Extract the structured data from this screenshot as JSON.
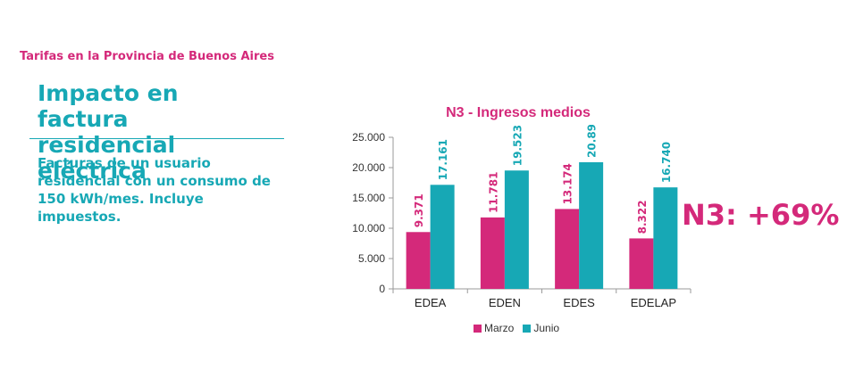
{
  "header": {
    "title": "Tarifas en la Provincia de Buenos Aires"
  },
  "headline": {
    "text": "Impacto en factura residencial eléctrica"
  },
  "subtext": {
    "text": "Facturas de un usuario residencial con un consumo de 150 kWh/mes. Incluye impuestos."
  },
  "callout": {
    "text": "N3: +69%"
  },
  "colors": {
    "accent": "#d4297a",
    "teal": "#17a8b5",
    "axis": "#9a9a9a"
  },
  "chart_data": {
    "type": "bar",
    "title": "N3 - Ingresos medios",
    "categories": [
      "EDEA",
      "EDEN",
      "EDES",
      "EDELAP"
    ],
    "series": [
      {
        "name": "Marzo",
        "color": "#d4297a",
        "values": [
          9371,
          11781,
          13174,
          8322
        ],
        "labels": [
          "9.371",
          "11.781",
          "13.174",
          "8.322"
        ]
      },
      {
        "name": "Junio",
        "color": "#17a8b5",
        "values": [
          17161,
          19523,
          20891,
          16740
        ],
        "labels": [
          "17.161",
          "19.523",
          "20.891",
          "16.740"
        ]
      }
    ],
    "yticks": [
      0,
      5000,
      10000,
      15000,
      20000,
      25000
    ],
    "ytick_labels": [
      "0",
      "5.000",
      "10.000",
      "15.000",
      "20.000",
      "25.000"
    ],
    "ylim": [
      0,
      25000
    ],
    "grid": false,
    "legend_position": "bottom"
  }
}
